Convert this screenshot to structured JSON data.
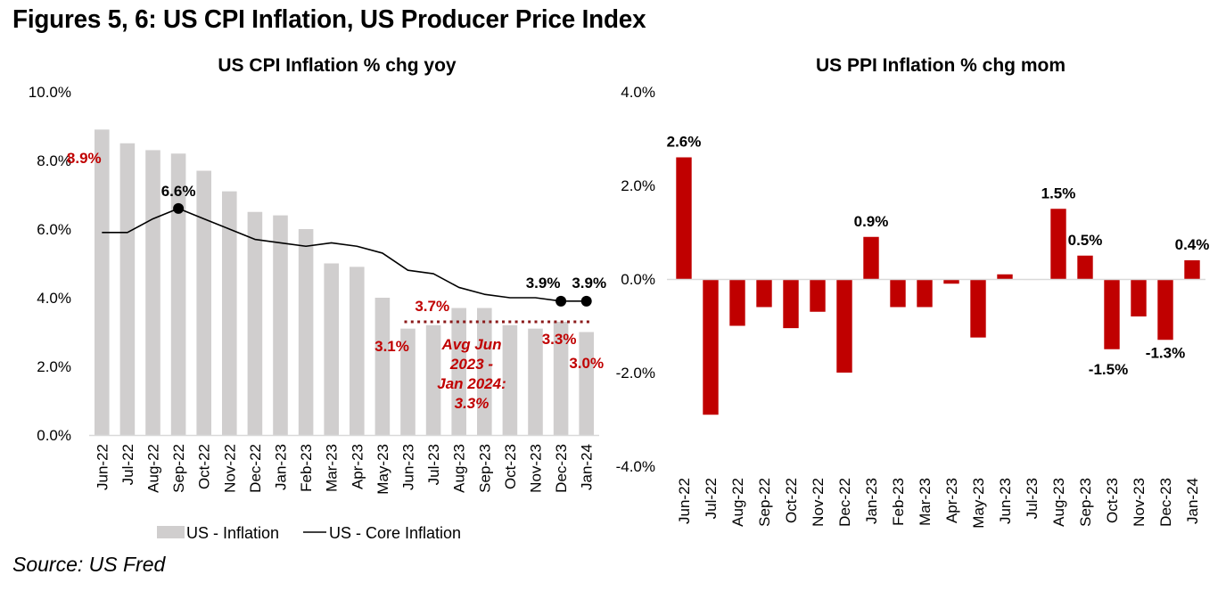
{
  "figure": {
    "title": "Figures 5, 6: US CPI Inflation, US Producer Price Index",
    "source": "Source: US Fred"
  },
  "colors": {
    "cpi_bar": "#d0cece",
    "core_line": "#000000",
    "accent_red": "#c00000",
    "avg_line": "#8b1a1a",
    "ppi_bar": "#c00000"
  },
  "chart_data": [
    {
      "type": "bar",
      "title": "US CPI Inflation % chg yoy",
      "xlabel": "",
      "ylabel": "",
      "ylim": [
        0,
        10
      ],
      "yticks": [
        "0.0%",
        "2.0%",
        "4.0%",
        "6.0%",
        "8.0%",
        "10.0%"
      ],
      "ytick_values": [
        0,
        2,
        4,
        6,
        8,
        10
      ],
      "grid": false,
      "legend": "bottom",
      "categories": [
        "Jun-22",
        "Jul-22",
        "Aug-22",
        "Sep-22",
        "Oct-22",
        "Nov-22",
        "Dec-22",
        "Jan-23",
        "Feb-23",
        "Mar-23",
        "Apr-23",
        "May-23",
        "Jun-23",
        "Jul-23",
        "Aug-23",
        "Sep-23",
        "Oct-23",
        "Nov-23",
        "Dec-23",
        "Jan-24"
      ],
      "series": [
        {
          "name": "US - Inflation",
          "kind": "bar",
          "values": [
            8.9,
            8.5,
            8.3,
            8.2,
            7.7,
            7.1,
            6.5,
            6.4,
            6.0,
            5.0,
            4.9,
            4.0,
            3.1,
            3.2,
            3.7,
            3.7,
            3.2,
            3.1,
            3.3,
            3.0
          ]
        },
        {
          "name": "US - Core Inflation",
          "kind": "line",
          "values": [
            5.9,
            5.9,
            6.3,
            6.6,
            6.3,
            6.0,
            5.7,
            5.6,
            5.5,
            5.6,
            5.5,
            5.3,
            4.8,
            4.7,
            4.3,
            4.1,
            4.0,
            4.0,
            3.9,
            3.9
          ]
        }
      ],
      "markers": [
        {
          "series": "US - Core Inflation",
          "index": 3,
          "label": "6.6%"
        },
        {
          "series": "US - Core Inflation",
          "index": 18,
          "label": "3.9%"
        },
        {
          "series": "US - Core Inflation",
          "index": 19,
          "label": "3.9%"
        }
      ],
      "annotations": [
        {
          "text": "8.9%",
          "index": 0,
          "value": 8.9,
          "color": "red"
        },
        {
          "text": "3.1%",
          "index": 12,
          "value": 3.1,
          "color": "red"
        },
        {
          "text": "3.7%",
          "index": 14,
          "value": 3.7,
          "color": "red"
        },
        {
          "text": "3.3%",
          "index": 18,
          "value": 3.3,
          "color": "red"
        },
        {
          "text": "3.0%",
          "index": 19,
          "value": 3.0,
          "color": "red"
        }
      ],
      "average_line": {
        "value": 3.3,
        "from_index": 12,
        "to_index": 19,
        "label_lines": [
          "Avg Jun",
          "2023 -",
          "Jan 2024:",
          "3.3%"
        ]
      }
    },
    {
      "type": "bar",
      "title": "US PPI Inflation % chg mom",
      "xlabel": "",
      "ylabel": "",
      "ylim": [
        -4,
        4
      ],
      "yticks": [
        "-4.0%",
        "-2.0%",
        "0.0%",
        "2.0%",
        "4.0%"
      ],
      "ytick_values": [
        -4,
        -2,
        0,
        2,
        4
      ],
      "grid": false,
      "categories": [
        "Jun-22",
        "Jul-22",
        "Aug-22",
        "Sep-22",
        "Oct-22",
        "Nov-22",
        "Dec-22",
        "Jan-23",
        "Feb-23",
        "Mar-23",
        "Apr-23",
        "May-23",
        "Jun-23",
        "Jul-23",
        "Aug-23",
        "Sep-23",
        "Oct-23",
        "Nov-23",
        "Dec-23",
        "Jan-24"
      ],
      "series": [
        {
          "name": "US PPI",
          "kind": "bar",
          "values": [
            2.6,
            -2.9,
            -1.0,
            -0.6,
            -1.05,
            -0.7,
            -2.0,
            0.9,
            -0.6,
            -0.6,
            -0.1,
            -1.25,
            0.1,
            -0.02,
            1.5,
            0.5,
            -1.5,
            -0.8,
            -1.3,
            0.4
          ]
        }
      ],
      "annotations": [
        {
          "text": "2.6%",
          "index": 0,
          "value": 2.6
        },
        {
          "text": "0.9%",
          "index": 7,
          "value": 0.9
        },
        {
          "text": "1.5%",
          "index": 14,
          "value": 1.5
        },
        {
          "text": "0.5%",
          "index": 15,
          "value": 0.5
        },
        {
          "text": "-1.5%",
          "index": 16,
          "value": -1.5
        },
        {
          "text": "-1.3%",
          "index": 18,
          "value": -1.3
        },
        {
          "text": "0.4%",
          "index": 19,
          "value": 0.4
        }
      ]
    }
  ]
}
